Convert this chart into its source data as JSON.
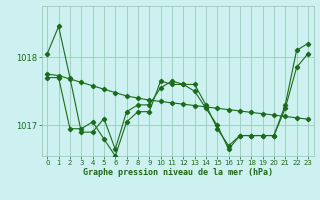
{
  "title": "Graphe pression niveau de la mer (hPa)",
  "background_color": "#cdf0f0",
  "grid_color": "#99ccbb",
  "line_color": "#1a6b1a",
  "xlim": [
    -0.5,
    23.5
  ],
  "ylim": [
    1016.55,
    1018.75
  ],
  "yticks": [
    1017.0,
    1018.0
  ],
  "xticks": [
    0,
    1,
    2,
    3,
    4,
    5,
    6,
    7,
    8,
    9,
    10,
    11,
    12,
    13,
    14,
    15,
    16,
    17,
    18,
    19,
    20,
    21,
    22,
    23
  ],
  "series1": {
    "x": [
      0,
      1,
      2,
      3,
      4,
      5,
      6,
      7,
      8,
      9,
      10,
      11,
      12,
      13,
      14,
      15,
      16,
      17,
      18,
      19,
      20,
      21,
      22,
      23
    ],
    "y": [
      1018.05,
      1018.45,
      1017.7,
      1016.9,
      1016.9,
      1017.1,
      1016.65,
      1017.2,
      1017.3,
      1017.3,
      1017.55,
      1017.65,
      1017.6,
      1017.6,
      1017.3,
      1016.95,
      1016.7,
      1016.85,
      1016.85,
      1016.85,
      1016.85,
      1017.3,
      1018.1,
      1018.2
    ]
  },
  "series2": {
    "x": [
      0,
      1,
      2,
      3,
      4,
      5,
      6,
      7,
      8,
      9,
      10,
      11,
      12,
      13,
      14,
      15,
      16,
      17,
      18,
      19,
      20,
      21,
      22,
      23
    ],
    "y": [
      1017.75,
      1017.73,
      1017.68,
      1017.63,
      1017.58,
      1017.53,
      1017.48,
      1017.43,
      1017.4,
      1017.37,
      1017.35,
      1017.33,
      1017.31,
      1017.29,
      1017.27,
      1017.25,
      1017.23,
      1017.21,
      1017.19,
      1017.17,
      1017.15,
      1017.13,
      1017.11,
      1017.09
    ]
  },
  "series3": {
    "x": [
      0,
      1,
      2,
      3,
      4,
      5,
      6,
      7,
      8,
      9,
      10,
      11,
      12,
      13,
      14,
      15,
      16,
      17,
      18,
      19,
      20,
      21,
      22,
      23
    ],
    "y": [
      1017.7,
      1017.7,
      1016.95,
      1016.95,
      1017.05,
      1016.8,
      1016.55,
      1017.05,
      1017.2,
      1017.2,
      1017.65,
      1017.6,
      1017.6,
      1017.5,
      1017.25,
      1017.0,
      1016.65,
      1016.85,
      1016.85,
      1016.85,
      1016.85,
      1017.25,
      1017.85,
      1018.05
    ]
  }
}
